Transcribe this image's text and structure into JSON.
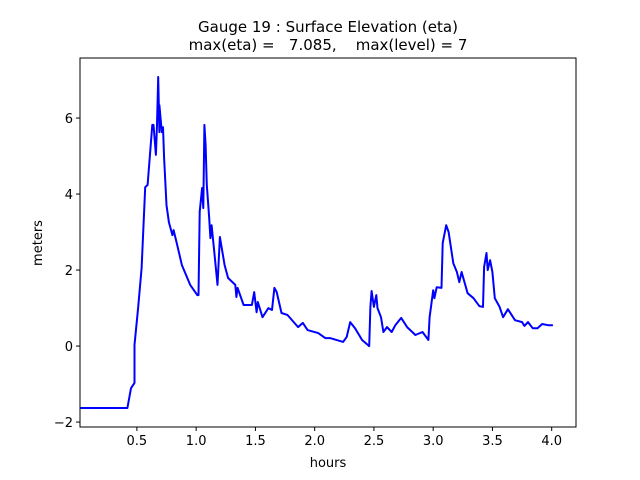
{
  "chart_data": {
    "type": "line",
    "title": "Gauge 19 : Surface Elevation (eta)",
    "subtitle": "max(eta) =   7.085,    max(level) = 7",
    "xlabel": "hours",
    "ylabel": "meters",
    "xlim": [
      0.02,
      4.205
    ],
    "ylim": [
      -2.13,
      7.58
    ],
    "xticks": [
      0.5,
      1.0,
      1.5,
      2.0,
      2.5,
      3.0,
      3.5,
      4.0
    ],
    "xtick_labels": [
      "0.5",
      "1.0",
      "1.5",
      "2.0",
      "2.5",
      "3.0",
      "3.5",
      "4.0"
    ],
    "yticks": [
      -2,
      0,
      2,
      4,
      6
    ],
    "ytick_labels": [
      "−2",
      "0",
      "2",
      "4",
      "6"
    ],
    "grid": false,
    "series": [
      {
        "name": "eta",
        "color": "#0000ff",
        "x": [
          0.02,
          0.42,
          0.45,
          0.48,
          0.48,
          0.51,
          0.54,
          0.57,
          0.59,
          0.63,
          0.64,
          0.66,
          0.67,
          0.68,
          0.69,
          0.69,
          0.71,
          0.72,
          0.73,
          0.75,
          0.77,
          0.8,
          0.81,
          0.84,
          0.88,
          0.95,
          1.01,
          1.02,
          1.03,
          1.05,
          1.06,
          1.07,
          1.08,
          1.09,
          1.11,
          1.12,
          1.13,
          1.15,
          1.18,
          1.2,
          1.24,
          1.27,
          1.33,
          1.34,
          1.35,
          1.4,
          1.47,
          1.49,
          1.51,
          1.52,
          1.56,
          1.61,
          1.64,
          1.66,
          1.68,
          1.72,
          1.77,
          1.86,
          1.9,
          1.94,
          2.03,
          2.09,
          2.13,
          2.24,
          2.27,
          2.3,
          2.34,
          2.4,
          2.46,
          2.47,
          2.48,
          2.5,
          2.52,
          2.53,
          2.56,
          2.58,
          2.61,
          2.65,
          2.68,
          2.73,
          2.78,
          2.85,
          2.91,
          2.96,
          2.97,
          3.0,
          3.01,
          3.03,
          3.07,
          3.08,
          3.11,
          3.13,
          3.17,
          3.2,
          3.22,
          3.24,
          3.29,
          3.34,
          3.39,
          3.42,
          3.43,
          3.45,
          3.46,
          3.48,
          3.5,
          3.52,
          3.56,
          3.59,
          3.63,
          3.69,
          3.75,
          3.77,
          3.8,
          3.84,
          3.88,
          3.92,
          3.97,
          4.01
        ],
        "y": [
          -1.63,
          -1.63,
          -1.11,
          -0.97,
          0.03,
          1.0,
          2.05,
          4.18,
          4.24,
          5.82,
          5.82,
          5.03,
          5.82,
          7.08,
          5.63,
          6.34,
          5.63,
          5.76,
          4.95,
          3.71,
          3.26,
          2.92,
          3.05,
          2.66,
          2.13,
          1.61,
          1.34,
          1.34,
          3.53,
          4.16,
          3.63,
          5.82,
          5.29,
          4.24,
          3.37,
          2.84,
          3.18,
          2.58,
          1.61,
          2.87,
          2.13,
          1.79,
          1.61,
          1.29,
          1.53,
          1.08,
          1.08,
          1.42,
          0.89,
          1.16,
          0.76,
          1.0,
          0.95,
          1.53,
          1.42,
          0.87,
          0.82,
          0.5,
          0.61,
          0.42,
          0.34,
          0.21,
          0.21,
          0.11,
          0.24,
          0.63,
          0.47,
          0.16,
          0.0,
          1.03,
          1.45,
          1.03,
          1.34,
          1.0,
          0.76,
          0.37,
          0.5,
          0.37,
          0.55,
          0.74,
          0.5,
          0.29,
          0.37,
          0.16,
          0.76,
          1.47,
          1.26,
          1.55,
          1.53,
          2.71,
          3.18,
          3.0,
          2.18,
          1.95,
          1.68,
          1.95,
          1.39,
          1.26,
          1.05,
          1.03,
          2.08,
          2.45,
          2.0,
          2.26,
          1.95,
          1.26,
          1.03,
          0.76,
          0.97,
          0.68,
          0.63,
          0.53,
          0.63,
          0.47,
          0.47,
          0.58,
          0.55,
          0.55
        ]
      }
    ]
  }
}
